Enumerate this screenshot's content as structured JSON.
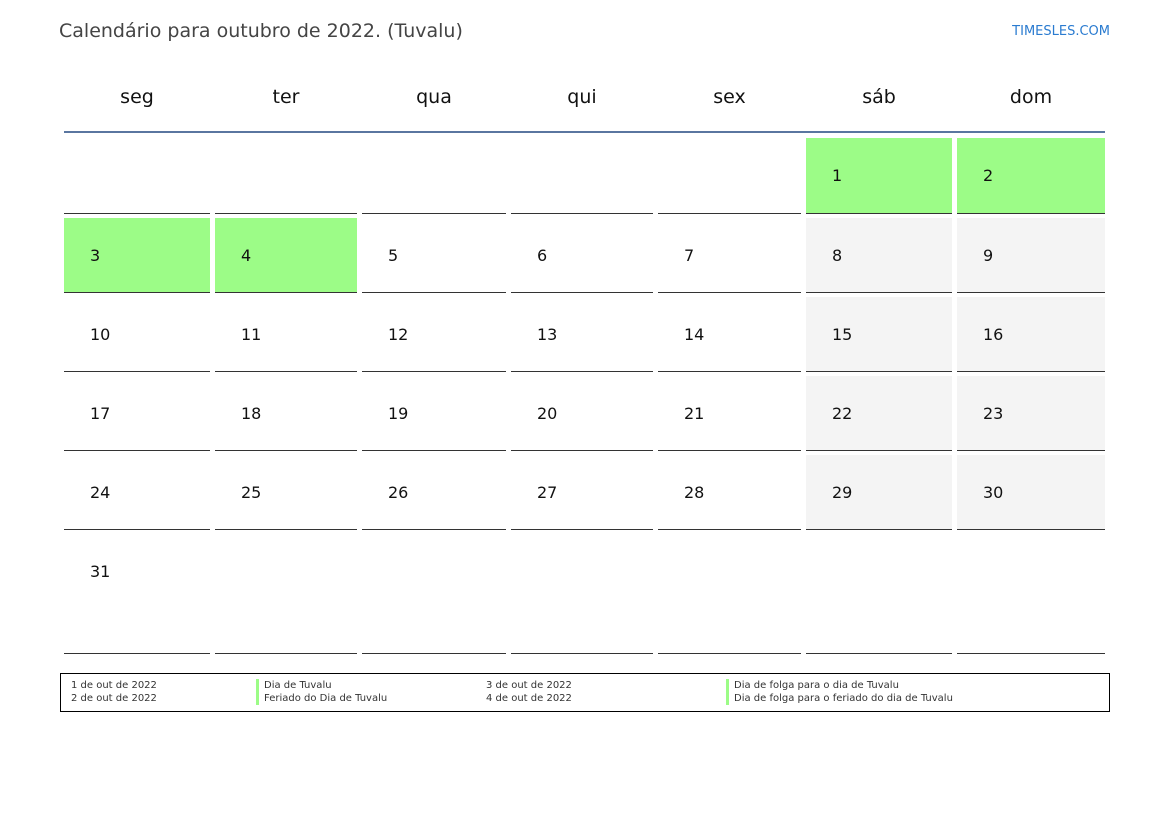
{
  "header": {
    "title": "Calendário para outubro de 2022. (Tuvalu)",
    "brand": "TIMESLES.COM"
  },
  "colors": {
    "holiday": "#9cfc87",
    "weekend": "#f4f4f4",
    "rule": "#5a76a0",
    "brand": "#2a7bd0"
  },
  "weekdays": [
    "seg",
    "ter",
    "qua",
    "qui",
    "sex",
    "sáb",
    "dom"
  ],
  "weeks": [
    [
      {
        "day": "",
        "type": "blank"
      },
      {
        "day": "",
        "type": "blank"
      },
      {
        "day": "",
        "type": "blank"
      },
      {
        "day": "",
        "type": "blank"
      },
      {
        "day": "",
        "type": "blank"
      },
      {
        "day": "1",
        "type": "holiday"
      },
      {
        "day": "2",
        "type": "holiday"
      }
    ],
    [
      {
        "day": "3",
        "type": "holiday"
      },
      {
        "day": "4",
        "type": "holiday"
      },
      {
        "day": "5",
        "type": "normal"
      },
      {
        "day": "6",
        "type": "normal"
      },
      {
        "day": "7",
        "type": "normal"
      },
      {
        "day": "8",
        "type": "weekend"
      },
      {
        "day": "9",
        "type": "weekend"
      }
    ],
    [
      {
        "day": "10",
        "type": "normal"
      },
      {
        "day": "11",
        "type": "normal"
      },
      {
        "day": "12",
        "type": "normal"
      },
      {
        "day": "13",
        "type": "normal"
      },
      {
        "day": "14",
        "type": "normal"
      },
      {
        "day": "15",
        "type": "weekend"
      },
      {
        "day": "16",
        "type": "weekend"
      }
    ],
    [
      {
        "day": "17",
        "type": "normal"
      },
      {
        "day": "18",
        "type": "normal"
      },
      {
        "day": "19",
        "type": "normal"
      },
      {
        "day": "20",
        "type": "normal"
      },
      {
        "day": "21",
        "type": "normal"
      },
      {
        "day": "22",
        "type": "weekend"
      },
      {
        "day": "23",
        "type": "weekend"
      }
    ],
    [
      {
        "day": "24",
        "type": "normal"
      },
      {
        "day": "25",
        "type": "normal"
      },
      {
        "day": "26",
        "type": "normal"
      },
      {
        "day": "27",
        "type": "normal"
      },
      {
        "day": "28",
        "type": "normal"
      },
      {
        "day": "29",
        "type": "weekend"
      },
      {
        "day": "30",
        "type": "weekend"
      }
    ],
    [
      {
        "day": "31",
        "type": "normal"
      },
      {
        "day": "",
        "type": "blank"
      },
      {
        "day": "",
        "type": "blank"
      },
      {
        "day": "",
        "type": "blank"
      },
      {
        "day": "",
        "type": "blank"
      },
      {
        "day": "",
        "type": "blank"
      },
      {
        "day": "",
        "type": "blank"
      }
    ]
  ],
  "legend": [
    {
      "date": "1 de out de 2022",
      "name": "Dia de Tuvalu"
    },
    {
      "date": "2 de out de 2022",
      "name": "Feriado do Dia de Tuvalu"
    },
    {
      "date": "3 de out de 2022",
      "name": "Dia de folga para o dia de Tuvalu"
    },
    {
      "date": "4 de out de 2022",
      "name": "Dia de folga para o feriado do dia de Tuvalu"
    }
  ]
}
